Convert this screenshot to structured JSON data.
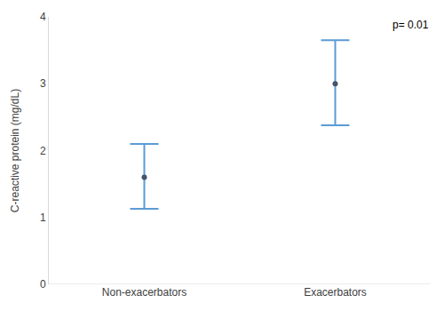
{
  "chart_data": {
    "type": "scatter",
    "y_label": "C-reactive protein (mg/dL)",
    "categories": [
      "Non-exacerbators",
      "Exacerbators"
    ],
    "values": [
      1.6,
      3.0
    ],
    "error_plus": [
      0.5,
      0.65
    ],
    "error_minus": [
      0.47,
      0.62
    ],
    "color": "#5b9bd5",
    "marker": "circle",
    "annotations": [
      "p= 0.01"
    ],
    "ylim": [
      0,
      4
    ],
    "yticks": [
      0,
      1,
      2,
      3,
      4
    ],
    "grid": false
  }
}
